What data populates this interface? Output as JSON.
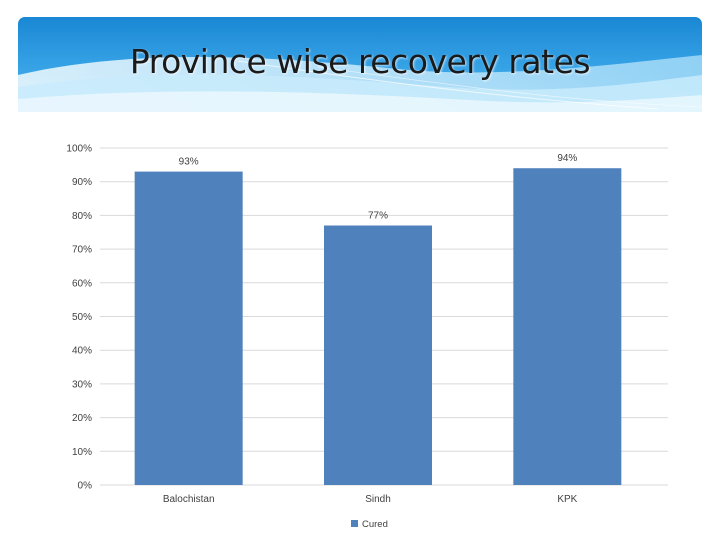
{
  "slide": {
    "title": "Province wise recovery rates"
  },
  "chart_data": {
    "type": "bar",
    "categories": [
      "Balochistan",
      "Sindh",
      "KPK"
    ],
    "series": [
      {
        "name": "Cured",
        "values": [
          93,
          77,
          94
        ],
        "labels": [
          "93%",
          "77%",
          "94%"
        ],
        "color": "#4f81bd"
      }
    ],
    "ylim": [
      0,
      100
    ],
    "yticks": [
      0,
      10,
      20,
      30,
      40,
      50,
      60,
      70,
      80,
      90,
      100
    ],
    "ytick_labels": [
      "0%",
      "10%",
      "20%",
      "30%",
      "40%",
      "50%",
      "60%",
      "70%",
      "80%",
      "90%",
      "100%"
    ],
    "grid": true,
    "legend": "bottom",
    "gridline_color": "#d9d9d9"
  },
  "theme": {
    "header_light": "#bfe3f7",
    "header_dark": "#1f8fd8"
  }
}
